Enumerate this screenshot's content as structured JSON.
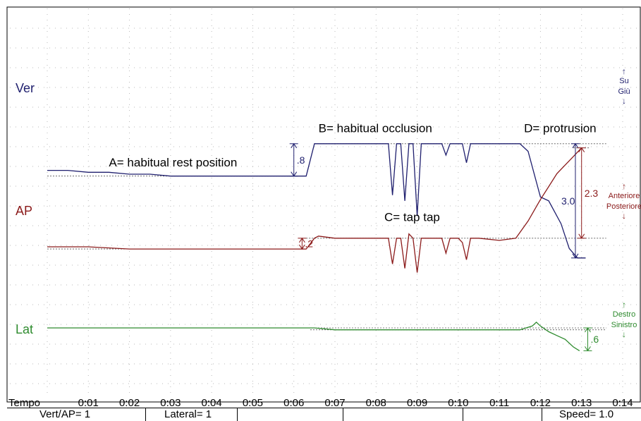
{
  "chart_data": {
    "type": "line",
    "title": "",
    "xlabel": "Tempo",
    "x_ticks": [
      "0:01",
      "0:02",
      "0:03",
      "0:04",
      "0:05",
      "0:06",
      "0:07",
      "0:08",
      "0:09",
      "0:10",
      "0:11",
      "0:12",
      "0:13",
      "0:14"
    ],
    "xlim": [
      0,
      14
    ],
    "grid": true,
    "channels": [
      {
        "name": "Ver",
        "color": "#1f1f6e",
        "directions": [
          "Su",
          "Giù"
        ]
      },
      {
        "name": "AP",
        "color": "#8b1a1a",
        "directions": [
          "Anteriore",
          "Posteriore"
        ]
      },
      {
        "name": "Lat",
        "color": "#2e8b2e",
        "directions": [
          "Destro",
          "Sinistro"
        ]
      }
    ],
    "series": [
      {
        "name": "Ver",
        "x": [
          0,
          0.5,
          1,
          1.5,
          2,
          2.5,
          3,
          3.5,
          4,
          4.5,
          5,
          5.5,
          6,
          6.3,
          6.5,
          6.6,
          7,
          7.5,
          8,
          8.2,
          8.3,
          8.4,
          8.5,
          8.6,
          8.7,
          8.8,
          8.9,
          9.0,
          9.1,
          9.2,
          9.4,
          9.6,
          9.7,
          9.8,
          10,
          10.1,
          10.2,
          10.3,
          10.5,
          11,
          11.5,
          11.7,
          12,
          12.2,
          12.5,
          12.7,
          12.9,
          13.1
        ],
        "y": [
          0.1,
          0.1,
          0.05,
          0.05,
          0.0,
          0.0,
          -0.05,
          -0.05,
          -0.05,
          -0.05,
          -0.05,
          -0.05,
          -0.05,
          -0.05,
          0.8,
          0.8,
          0.8,
          0.8,
          0.8,
          0.8,
          0.8,
          -0.55,
          0.8,
          0.8,
          -0.7,
          0.8,
          0.8,
          -1.1,
          0.8,
          0.8,
          0.8,
          0.8,
          0.5,
          0.8,
          0.8,
          0.8,
          0.3,
          0.8,
          0.8,
          0.8,
          0.8,
          0.6,
          -0.6,
          -0.7,
          -1.3,
          -1.95,
          -2.2,
          -2.2
        ]
      },
      {
        "name": "AP",
        "x": [
          0,
          1,
          2,
          3,
          4,
          5,
          6,
          6.3,
          6.5,
          6.6,
          7,
          7.5,
          8,
          8.3,
          8.4,
          8.5,
          8.6,
          8.7,
          8.8,
          8.9,
          9.0,
          9.1,
          9.2,
          9.4,
          9.6,
          9.7,
          9.8,
          10,
          10.1,
          10.2,
          10.3,
          10.5,
          11,
          11.4,
          11.7,
          12,
          12.2,
          12.4,
          12.6,
          12.8,
          13.0
        ],
        "y": [
          0,
          0,
          -0.05,
          -0.05,
          -0.05,
          -0.05,
          -0.05,
          -0.05,
          0.2,
          0.25,
          0.2,
          0.2,
          0.2,
          0.2,
          -0.4,
          0.2,
          0.2,
          -0.5,
          0.3,
          0.2,
          -0.6,
          0.2,
          0.2,
          0.2,
          0.2,
          -0.15,
          0.2,
          0.2,
          0.1,
          -0.3,
          0.2,
          0.2,
          0.15,
          0.2,
          0.6,
          1.1,
          1.4,
          1.7,
          1.9,
          2.1,
          2.3
        ]
      },
      {
        "name": "Lat",
        "x": [
          0,
          1,
          2,
          3,
          4,
          5,
          6,
          6.5,
          7,
          7.5,
          8,
          8.5,
          9,
          9.5,
          10,
          10.5,
          11,
          11.5,
          11.8,
          11.9,
          12.0,
          12.2,
          12.4,
          12.6,
          12.8,
          12.95
        ],
        "y": [
          0,
          0,
          0,
          0,
          0,
          0,
          0,
          0,
          -0.05,
          -0.05,
          -0.05,
          -0.05,
          -0.05,
          -0.05,
          -0.05,
          -0.05,
          -0.05,
          -0.05,
          0.05,
          0.15,
          0.05,
          -0.1,
          -0.2,
          -0.3,
          -0.5,
          -0.6
        ]
      }
    ],
    "annotations": [
      {
        "text": "A= habitual rest position",
        "channel": "Ver",
        "x": 1.5,
        "y": 0.2
      },
      {
        "text": "B= habitual occlusion",
        "channel": "Ver",
        "x": 6.6,
        "y": 1.1
      },
      {
        "text": "C= tap tap",
        "channel": "AP",
        "x": 8.2,
        "y": 0.6
      },
      {
        "text": "D= protrusion",
        "channel": "Ver",
        "x": 11.6,
        "y": 1.1
      }
    ],
    "measures": [
      {
        "label": ".8",
        "channel": "Ver",
        "x": 6.0,
        "from": -0.05,
        "to": 0.8
      },
      {
        "label": ".2",
        "channel": "AP",
        "x": 6.2,
        "from": -0.05,
        "to": 0.2
      },
      {
        "label": "3.0",
        "channel": "Ver",
        "x": 12.85,
        "from": -2.2,
        "to": 0.8
      },
      {
        "label": "2.3",
        "channel": "AP",
        "x": 13.0,
        "from": 0.2,
        "to": 2.3
      },
      {
        "label": ".6",
        "channel": "Lat",
        "x": 13.15,
        "from": -0.6,
        "to": 0
      }
    ]
  },
  "status_bar": {
    "vert_ap": "Vert/AP= 1",
    "lateral": "Lateral= 1",
    "speed": "Speed= 1.0"
  }
}
